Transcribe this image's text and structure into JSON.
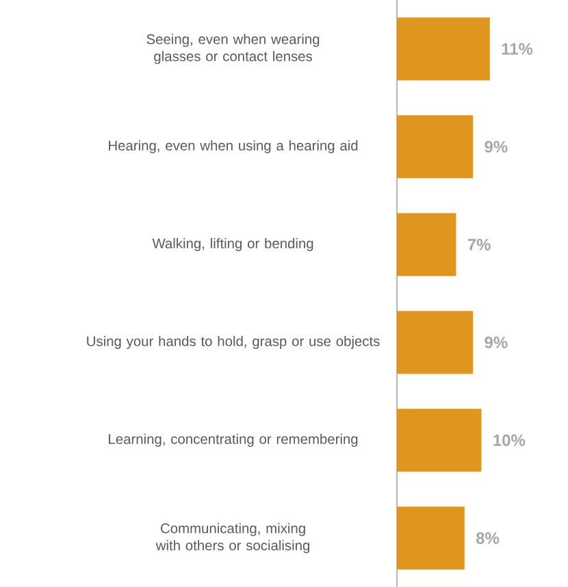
{
  "chart_data": {
    "type": "bar",
    "orientation": "horizontal",
    "categories": [
      "Seeing, even when wearing glasses or contact lenses",
      "Hearing, even when using a hearing aid",
      "Walking, lifting or bending",
      "Using your hands to hold, grasp or use objects",
      "Learning, concentrating or remembering",
      "Communicating, mixing with others or socialising"
    ],
    "values": [
      11,
      9,
      7,
      9,
      10,
      8
    ],
    "value_labels": [
      "11%",
      "9%",
      "7%",
      "9%",
      "10%",
      "8%"
    ],
    "color": "#df961f",
    "tick_labels": "y"
  }
}
